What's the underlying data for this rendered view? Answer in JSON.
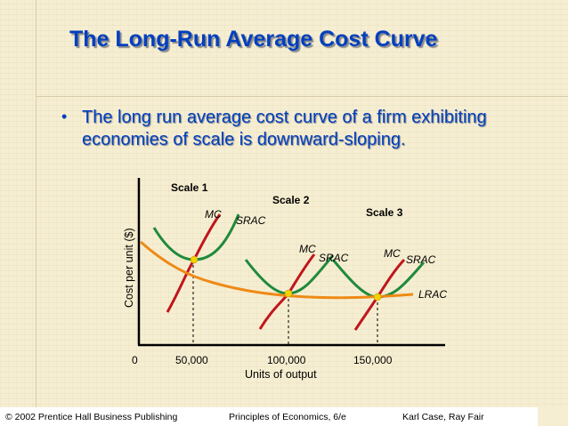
{
  "slide": {
    "title": "The Long-Run Average Cost Curve",
    "bullet": "The long run average cost curve of a firm exhibiting economies of scale is downward-sloping."
  },
  "footer": {
    "left": "© 2002 Prentice Hall Business Publishing",
    "center": "Principles of Economics, 6/e",
    "right": "Karl Case, Ray Fair"
  },
  "colors": {
    "title": "#003fbf",
    "lrac": "#ee8a16",
    "srac": "#1f8a3c",
    "mc": "#c0161c",
    "point": "#f2d200"
  },
  "chart_data": {
    "type": "line",
    "xlabel": "Units of output",
    "ylabel": "Cost per unit ($)",
    "x_ticks": [
      "0",
      "50,000",
      "100,000",
      "150,000"
    ],
    "scales": [
      {
        "name": "Scale 1",
        "mc_label": "MC",
        "srac_label": "SRAC",
        "min_output": 50000
      },
      {
        "name": "Scale 2",
        "mc_label": "MC",
        "srac_label": "SRAC",
        "min_output": 100000
      },
      {
        "name": "Scale 3",
        "mc_label": "MC",
        "srac_label": "SRAC",
        "min_output": 150000
      }
    ],
    "lrac_label": "LRAC"
  }
}
